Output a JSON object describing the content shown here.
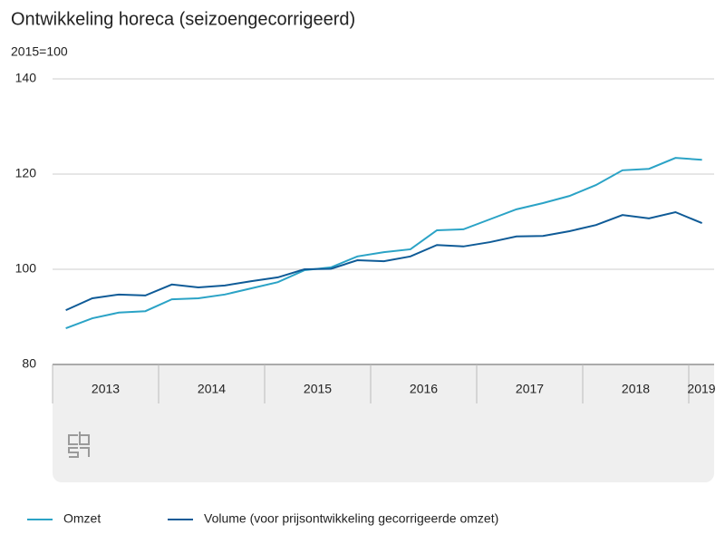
{
  "chart_data": {
    "type": "line",
    "title": "Ontwikkeling horeca (seizoengecorrigeerd)",
    "subtitle": "2015=100",
    "categories": [
      "2013",
      null,
      null,
      null,
      "2014",
      null,
      null,
      null,
      "2015",
      null,
      null,
      null,
      "2016",
      null,
      null,
      null,
      "2017",
      null,
      null,
      null,
      "2018",
      null,
      null,
      null,
      "2019"
    ],
    "series": [
      {
        "name": "Omzet",
        "color": "#2ba3c6",
        "values": [
          87.6,
          89.7,
          90.9,
          91.2,
          93.7,
          93.9,
          94.7,
          96.0,
          97.3,
          99.8,
          100.4,
          102.7,
          103.6,
          104.2,
          108.2,
          108.4,
          110.5,
          112.6,
          113.9,
          115.4,
          117.7,
          120.8,
          121.1,
          123.4,
          123.0
        ]
      },
      {
        "name": "Volume (voor prijsontwikkeling gecorrigeerde omzet)",
        "color": "#0f5b97",
        "values": [
          91.4,
          93.9,
          94.7,
          94.5,
          96.8,
          96.2,
          96.6,
          97.5,
          98.3,
          100.0,
          100.1,
          101.9,
          101.7,
          102.7,
          105.1,
          104.8,
          105.7,
          106.9,
          107.0,
          108.0,
          109.3,
          111.4,
          110.7,
          112.0,
          109.7
        ]
      }
    ],
    "ylim": [
      80,
      140
    ],
    "yticks": [
      80,
      100,
      120,
      140
    ],
    "grid": true,
    "legend": "bottom"
  }
}
